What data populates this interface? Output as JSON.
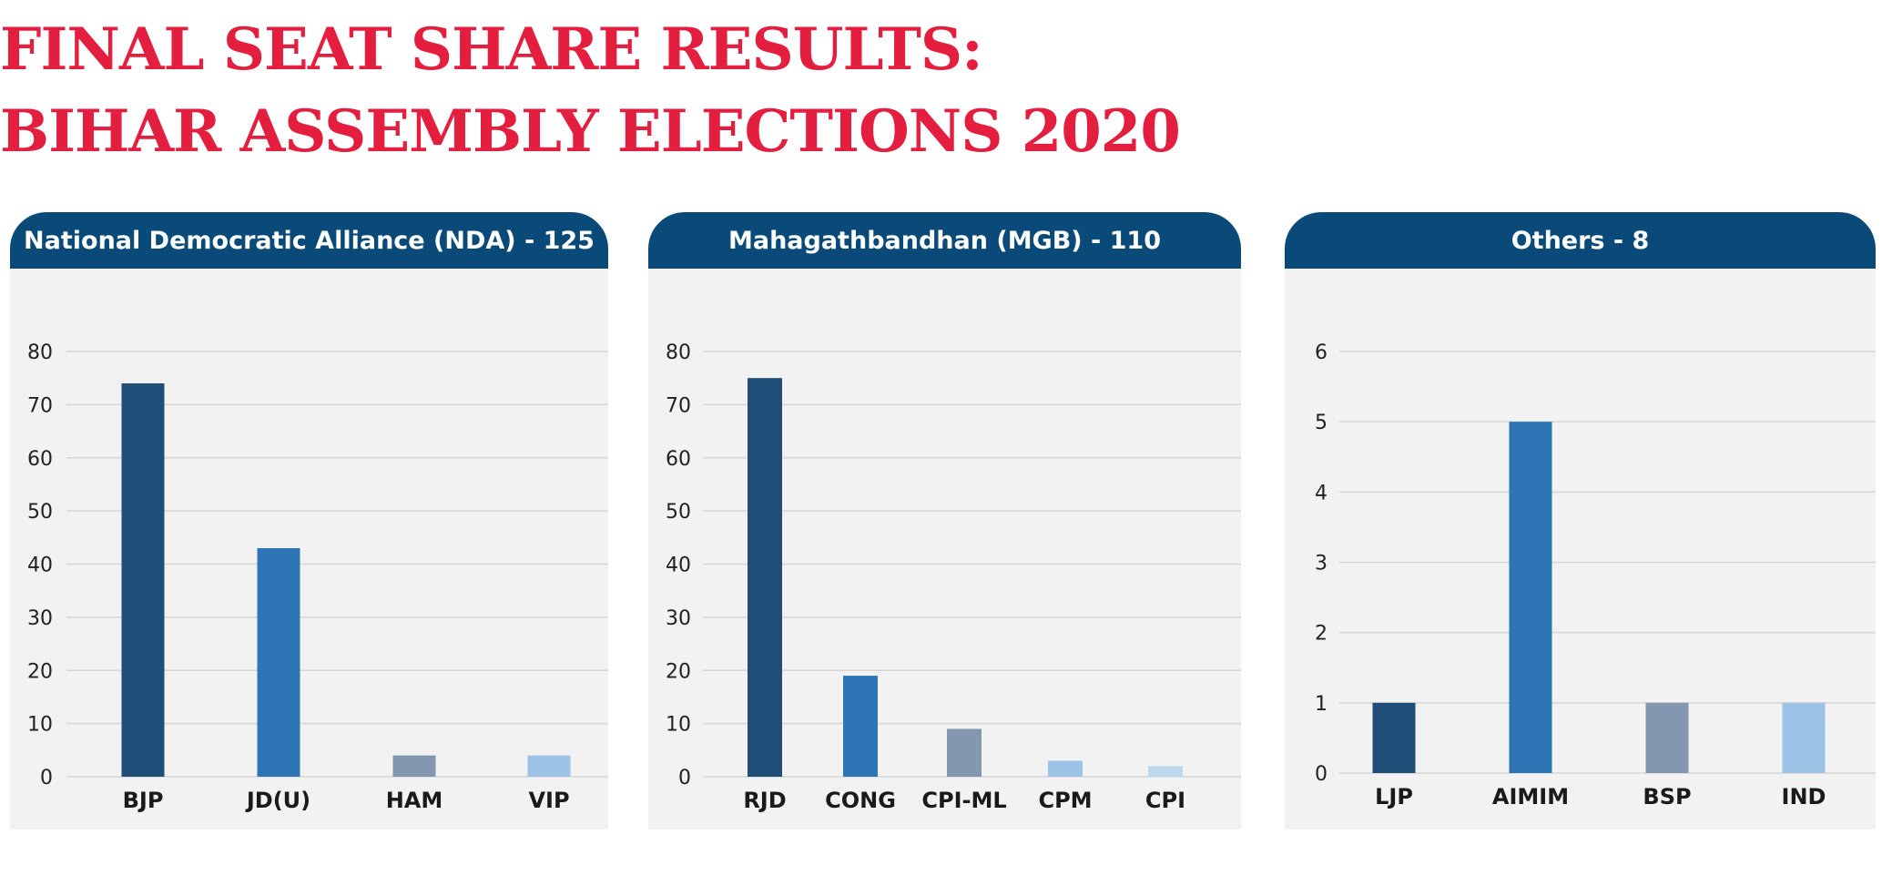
{
  "title": {
    "line1": "FINAL SEAT SHARE RESULTS:",
    "line2": "BIHAR ASSEMBLY ELECTIONS 2020"
  },
  "colors": {
    "title": "#e41e3f",
    "header_bg": "#0a4a78",
    "panel_bg": "#f2f2f2",
    "bar_palette": [
      "#1f4e79",
      "#2e75b6",
      "#8497b0",
      "#9dc3e6",
      "#bdd7ee"
    ]
  },
  "chart_data": [
    {
      "type": "bar",
      "title": "National Democratic Alliance (NDA) - 125",
      "categories": [
        "BJP",
        "JD(U)",
        "HAM",
        "VIP"
      ],
      "values": [
        74,
        43,
        4,
        4
      ],
      "colors": [
        "#1f4e79",
        "#2e75b6",
        "#8497b0",
        "#9dc3e6"
      ],
      "ylim": [
        0,
        80
      ],
      "yticks": [
        0,
        10,
        20,
        30,
        40,
        50,
        60,
        70,
        80
      ],
      "grid": true,
      "xlabel": "",
      "ylabel": ""
    },
    {
      "type": "bar",
      "title": "Mahagathbandhan (MGB) - 110",
      "categories": [
        "RJD",
        "CONG",
        "CPI-ML",
        "CPM",
        "CPI"
      ],
      "values": [
        75,
        19,
        9,
        3,
        2
      ],
      "colors": [
        "#1f4e79",
        "#2e75b6",
        "#8497b0",
        "#9dc3e6",
        "#bdd7ee"
      ],
      "ylim": [
        0,
        80
      ],
      "yticks": [
        0,
        10,
        20,
        30,
        40,
        50,
        60,
        70,
        80
      ],
      "grid": true,
      "xlabel": "",
      "ylabel": ""
    },
    {
      "type": "bar",
      "title": "Others - 8",
      "categories": [
        "LJP",
        "AIMIM",
        "BSP",
        "IND"
      ],
      "values": [
        1,
        5,
        1,
        1
      ],
      "colors": [
        "#1f4e79",
        "#2e75b6",
        "#8497b0",
        "#9dc3e6"
      ],
      "ylim": [
        0,
        6
      ],
      "yticks": [
        0,
        1,
        2,
        3,
        4,
        5,
        6
      ],
      "grid": true,
      "xlabel": "",
      "ylabel": ""
    }
  ]
}
